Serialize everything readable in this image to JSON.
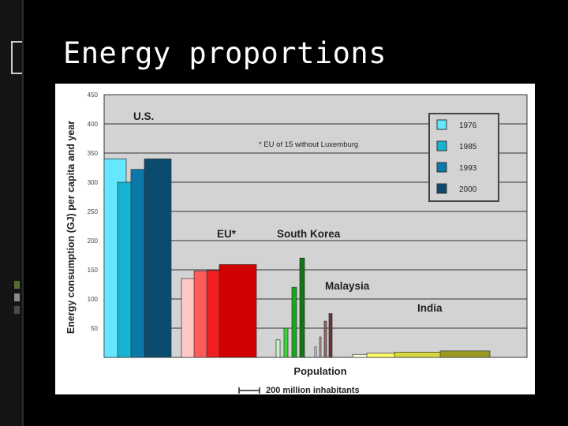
{
  "slide": {
    "title": "Energy proportions"
  },
  "colors": {
    "background": "#000000",
    "plot_area": "#d3d3d3",
    "1976": "#66e6ff",
    "1985": "#14b4d2",
    "1993": "#0a78a8",
    "2000": "#0a4b6e"
  },
  "chart_data": {
    "type": "bar",
    "ylabel": "Energy consumption (GJ) per capita and year",
    "xlabel": "Population",
    "scale_label": "200 million inhabitants",
    "ylim": [
      0,
      450
    ],
    "yticks": [
      50,
      100,
      150,
      200,
      250,
      300,
      350,
      400,
      450
    ],
    "grid": true,
    "legend_position": "top-right",
    "legend": [
      "1976",
      "1985",
      "1993",
      "2000"
    ],
    "note": "* EU of 15 without Luxemburg",
    "countries": [
      {
        "name": "U.S.",
        "values": [
          340,
          300,
          322,
          340
        ]
      },
      {
        "name": "EU*",
        "values": [
          135,
          148,
          149,
          159
        ]
      },
      {
        "name": "South Korea",
        "values": [
          30,
          50,
          120,
          170
        ]
      },
      {
        "name": "Malaysia",
        "values": [
          18,
          35,
          62,
          75
        ]
      },
      {
        "name": "India",
        "values": [
          5,
          7,
          9,
          11
        ]
      }
    ]
  }
}
